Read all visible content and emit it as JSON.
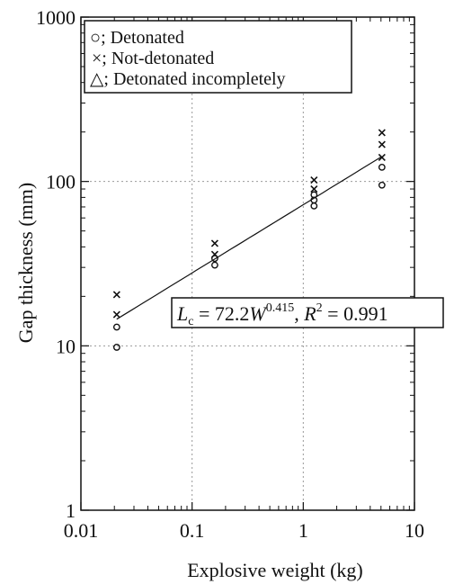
{
  "chart_data": {
    "type": "scatter",
    "xlabel": "Explosive weight (kg)",
    "ylabel": "Gap thickness (mm)",
    "x_scale": "log",
    "y_scale": "log",
    "xlim": [
      0.01,
      10
    ],
    "ylim": [
      1,
      1000
    ],
    "x_ticks": [
      "0.01",
      "0.1",
      "1",
      "10"
    ],
    "y_ticks": [
      "1",
      "10",
      "100",
      "1000"
    ],
    "grid": true,
    "legend_position": "top-left",
    "legend": [
      {
        "symbol": "○",
        "sep": ";",
        "label": "Detonated"
      },
      {
        "symbol": "×",
        "sep": ";",
        "label": "Not-detonated"
      },
      {
        "symbol": "△",
        "sep": ";",
        "label": "Detonated incompletely"
      }
    ],
    "series": [
      {
        "name": "Detonated",
        "marker": "circle",
        "points": [
          [
            0.021,
            9.8
          ],
          [
            0.021,
            13
          ],
          [
            0.16,
            31
          ],
          [
            0.16,
            34
          ],
          [
            1.25,
            71
          ],
          [
            1.25,
            77
          ],
          [
            1.25,
            83
          ],
          [
            5.1,
            95
          ],
          [
            5.1,
            122
          ]
        ]
      },
      {
        "name": "Not-detonated",
        "marker": "x",
        "points": [
          [
            0.021,
            15.5
          ],
          [
            0.021,
            20.5
          ],
          [
            0.16,
            36
          ],
          [
            0.16,
            42
          ],
          [
            1.25,
            90
          ],
          [
            1.25,
            102
          ],
          [
            5.1,
            140
          ],
          [
            5.1,
            168
          ],
          [
            5.1,
            198
          ]
        ]
      },
      {
        "name": "Detonated incompletely",
        "marker": "triangle",
        "points": []
      }
    ],
    "fit": {
      "a": 72.2,
      "b": 0.415,
      "x_range": [
        0.021,
        5.1
      ]
    },
    "annotation": {
      "lhs": "L",
      "lhs_sub": "c",
      "mid": " = 72.2",
      "var": "W",
      "exp": "0.415",
      "sep": ", ",
      "r": "R",
      "r_exp": "2",
      "rhs": " = 0.991"
    }
  }
}
